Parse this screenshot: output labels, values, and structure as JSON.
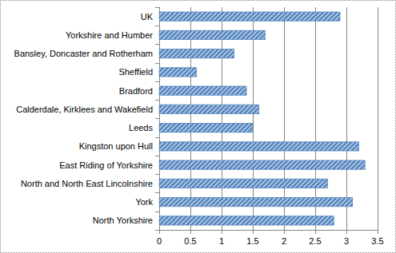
{
  "chart_data": {
    "type": "bar",
    "orientation": "horizontal",
    "categories": [
      "UK",
      "Yorkshire and Humber",
      "Bansley, Doncaster and Rotherham",
      "Sheffield",
      "Bradford",
      "Calderdale, Kirklees and Wakefield",
      "Leeds",
      "Kingston upon Hull",
      "East Riding of Yorkshire",
      "North and North East Lincolnshire",
      "York",
      "North Yorkshire"
    ],
    "values": [
      2.9,
      1.7,
      1.2,
      0.6,
      1.4,
      1.6,
      1.5,
      3.2,
      3.3,
      2.7,
      3.1,
      2.8
    ],
    "color": "#4a7ebb",
    "xlim": [
      0,
      3.5
    ],
    "xticks": [
      0,
      0.5,
      1,
      1.5,
      2,
      2.5,
      3,
      3.5
    ],
    "grid": true
  }
}
